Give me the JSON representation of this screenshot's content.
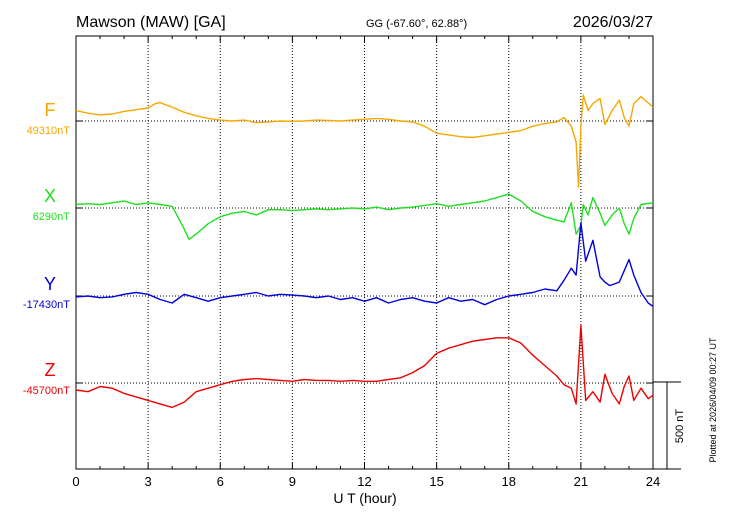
{
  "header": {
    "station": "Mawson (MAW)  [GA]",
    "coords": "GG (-67.60°,  62.88°)",
    "date": "2026/03/27"
  },
  "footer": {
    "plotted": "Plotted at 2026/04/09 00:27 UT",
    "scale_label": "500 nT"
  },
  "chart_data": {
    "type": "line",
    "title": "Mawson (MAW)  [GA]",
    "xlabel": "U T (hour)",
    "ylabel": "",
    "xlim": [
      0,
      24
    ],
    "x_ticks": [
      "0",
      "3",
      "6",
      "9",
      "12",
      "15",
      "18",
      "21",
      "24"
    ],
    "scale_bar_nT": 500,
    "colors": {
      "F": "#f5a800",
      "X": "#1ee01e",
      "Y": "#0000dd",
      "Z": "#ee0000"
    },
    "series": [
      {
        "name": "F",
        "baseline_label": "49310nT",
        "baseline_nT": 49310,
        "x": [
          0,
          0.5,
          1,
          1.5,
          2,
          2.5,
          3,
          3.3,
          3.5,
          4,
          4.5,
          5,
          5.5,
          6,
          6.5,
          7,
          7.5,
          8,
          8.5,
          9,
          9.5,
          10,
          10.5,
          11,
          11.5,
          12,
          12.5,
          13,
          13.5,
          14,
          14.5,
          15,
          15.5,
          16,
          16.5,
          17,
          17.5,
          18,
          18.5,
          19,
          19.5,
          20,
          20.3,
          20.6,
          20.8,
          20.9,
          21,
          21.1,
          21.3,
          21.5,
          21.8,
          22,
          22.3,
          22.6,
          22.8,
          23,
          23.2,
          23.5,
          24
        ],
        "values": [
          60,
          45,
          35,
          40,
          55,
          65,
          75,
          100,
          105,
          80,
          50,
          30,
          15,
          5,
          0,
          5,
          -10,
          -5,
          0,
          -2,
          0,
          5,
          3,
          0,
          5,
          10,
          15,
          10,
          0,
          -5,
          -30,
          -70,
          -80,
          -90,
          -95,
          -85,
          -75,
          -65,
          -55,
          -30,
          -15,
          -5,
          20,
          -30,
          -120,
          -380,
          -30,
          150,
          60,
          100,
          130,
          -20,
          60,
          120,
          20,
          -30,
          100,
          140,
          80
        ]
      },
      {
        "name": "X",
        "baseline_label": "6290nT",
        "baseline_nT": 6290,
        "x": [
          0,
          0.5,
          1,
          1.5,
          2,
          2.5,
          3,
          3.5,
          4,
          4.5,
          4.7,
          5,
          5.5,
          6,
          6.5,
          7,
          7.5,
          8,
          8.5,
          9,
          9.5,
          10,
          10.5,
          11,
          11.5,
          12,
          12.5,
          13,
          13.5,
          14,
          14.5,
          15,
          15.5,
          16,
          16.5,
          17,
          17.5,
          18,
          18.5,
          19,
          19.5,
          20,
          20.3,
          20.6,
          20.8,
          21,
          21.1,
          21.3,
          21.5,
          21.8,
          22,
          22.3,
          22.6,
          22.8,
          23,
          23.2,
          23.5,
          24
        ],
        "values": [
          20,
          25,
          20,
          30,
          40,
          20,
          30,
          20,
          10,
          -120,
          -180,
          -150,
          -90,
          -50,
          -30,
          -20,
          -40,
          -10,
          -10,
          -15,
          -10,
          -5,
          -10,
          -5,
          0,
          -5,
          5,
          -10,
          0,
          5,
          15,
          25,
          10,
          20,
          30,
          40,
          60,
          80,
          40,
          -20,
          -50,
          -70,
          -80,
          30,
          -150,
          -100,
          20,
          -40,
          60,
          -30,
          -100,
          -40,
          0,
          -90,
          -150,
          -60,
          20,
          30
        ]
      },
      {
        "name": "Y",
        "baseline_label": "-17430nT",
        "baseline_nT": -17430,
        "x": [
          0,
          0.5,
          1,
          1.5,
          2,
          2.5,
          3,
          3.5,
          4,
          4.5,
          5,
          5.5,
          6,
          6.5,
          7,
          7.5,
          8,
          8.5,
          9,
          9.5,
          10,
          10.5,
          11,
          11.5,
          12,
          12.5,
          13,
          13.5,
          14,
          14.5,
          15,
          15.5,
          16,
          16.5,
          17,
          17.5,
          18,
          18.5,
          19,
          19.5,
          20,
          20.3,
          20.6,
          20.8,
          21,
          21.2,
          21.5,
          21.8,
          22,
          22.2,
          22.6,
          23,
          23.2,
          23.5,
          23.8,
          24
        ],
        "values": [
          -5,
          0,
          -10,
          -5,
          10,
          20,
          10,
          -20,
          -40,
          10,
          -10,
          -30,
          -10,
          0,
          10,
          20,
          0,
          10,
          5,
          0,
          -10,
          0,
          -20,
          -10,
          -30,
          -10,
          -40,
          -20,
          -10,
          -30,
          -40,
          -10,
          -30,
          -20,
          -50,
          -20,
          0,
          10,
          20,
          40,
          30,
          90,
          160,
          120,
          420,
          200,
          320,
          110,
          80,
          60,
          80,
          210,
          120,
          20,
          -40,
          -60
        ]
      },
      {
        "name": "Z",
        "baseline_label": "-45700nT",
        "baseline_nT": -45700,
        "x": [
          0,
          0.5,
          1,
          1.5,
          2,
          2.5,
          3,
          3.5,
          4,
          4.5,
          5,
          5.5,
          6,
          6.5,
          7,
          7.5,
          8,
          8.5,
          9,
          9.5,
          10,
          10.5,
          11,
          11.5,
          12,
          12.5,
          13,
          13.5,
          14,
          14.5,
          15,
          15.5,
          16,
          16.5,
          17,
          17.5,
          18,
          18.5,
          19,
          19.5,
          20,
          20.3,
          20.6,
          20.8,
          21,
          21.2,
          21.5,
          21.8,
          22,
          22.3,
          22.6,
          22.8,
          23,
          23.2,
          23.5,
          23.8,
          24
        ],
        "values": [
          -40,
          -50,
          -20,
          -30,
          -60,
          -80,
          -100,
          -120,
          -140,
          -110,
          -50,
          -30,
          -10,
          10,
          20,
          25,
          20,
          15,
          10,
          20,
          15,
          15,
          10,
          15,
          10,
          10,
          20,
          30,
          60,
          100,
          170,
          200,
          220,
          240,
          250,
          260,
          260,
          230,
          160,
          100,
          40,
          -10,
          -30,
          -120,
          330,
          -100,
          -50,
          -110,
          50,
          -60,
          -120,
          -20,
          40,
          -100,
          -30,
          -90,
          -70
        ]
      }
    ]
  }
}
